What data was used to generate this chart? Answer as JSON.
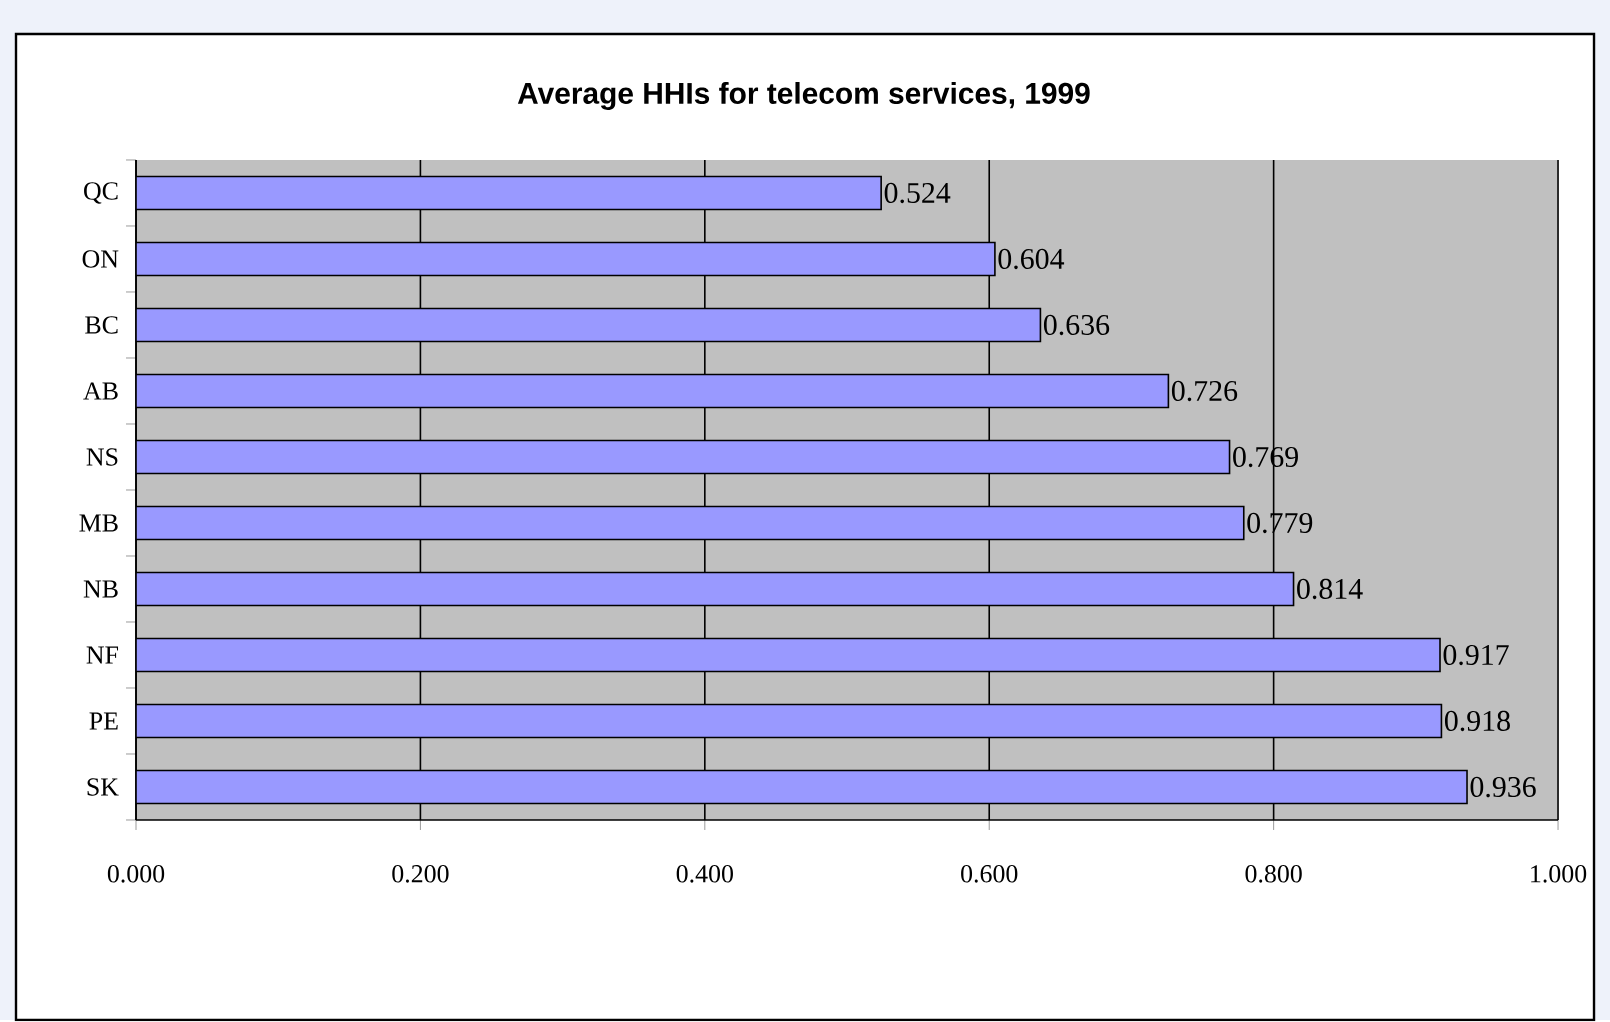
{
  "chart_data": {
    "type": "bar",
    "orientation": "horizontal",
    "title": "Average HHIs for telecom services, 1999",
    "categories": [
      "QC",
      "ON",
      "BC",
      "AB",
      "NS",
      "MB",
      "NB",
      "NF",
      "PE",
      "SK"
    ],
    "values": [
      0.524,
      0.604,
      0.636,
      0.726,
      0.769,
      0.779,
      0.814,
      0.917,
      0.918,
      0.936
    ],
    "color": "#9999ff",
    "xlim": [
      0,
      1
    ],
    "xticks": [
      {
        "value": 0,
        "label": "0.000"
      },
      {
        "value": 0.2,
        "label": "0.200"
      },
      {
        "value": 0.4,
        "label": "0.400"
      },
      {
        "value": 0.6,
        "label": "0.600"
      },
      {
        "value": 0.8,
        "label": "0.800"
      },
      {
        "value": 1,
        "label": "1.000"
      }
    ],
    "grid": "x",
    "data_labels": true
  }
}
